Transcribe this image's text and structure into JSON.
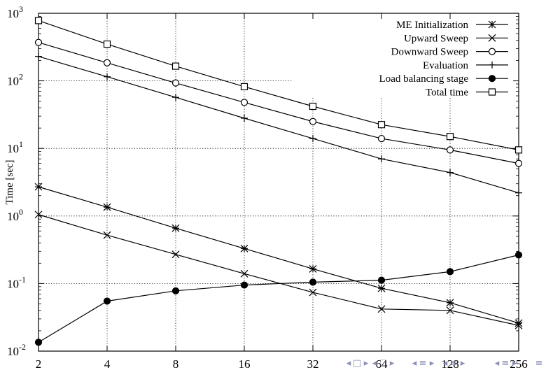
{
  "chart_data": {
    "type": "line",
    "title": "",
    "xlabel": "",
    "ylabel": "Time [sec]",
    "xscale": "log2",
    "yscale": "log10",
    "xlim": [
      2,
      256
    ],
    "ylim": [
      0.01,
      1000
    ],
    "grid": true,
    "legend_position": "top-right",
    "x": [
      2,
      4,
      8,
      16,
      32,
      64,
      128,
      256
    ],
    "x_tick_labels": [
      "2",
      "4",
      "8",
      "16",
      "32",
      "64",
      "128",
      "256"
    ],
    "y_ticks": [
      {
        "base": "10",
        "exp": "-2",
        "value": 0.01
      },
      {
        "base": "10",
        "exp": "-1",
        "value": 0.1
      },
      {
        "base": "10",
        "exp": "0",
        "value": 1
      },
      {
        "base": "10",
        "exp": "1",
        "value": 10
      },
      {
        "base": "10",
        "exp": "2",
        "value": 100
      },
      {
        "base": "10",
        "exp": "3",
        "value": 1000
      }
    ],
    "series": [
      {
        "name": "ME Initialization",
        "marker": "asterisk",
        "values": [
          2.7,
          1.35,
          0.66,
          0.33,
          0.165,
          0.085,
          0.052,
          0.026
        ]
      },
      {
        "name": "Upward Sweep",
        "marker": "cross",
        "values": [
          1.05,
          0.52,
          0.27,
          0.14,
          0.074,
          0.042,
          0.04,
          0.024
        ]
      },
      {
        "name": "Downward Sweep",
        "marker": "circle",
        "values": [
          370,
          185,
          93,
          48,
          25,
          14,
          9.5,
          6
        ]
      },
      {
        "name": "Evaluation",
        "marker": "plus",
        "values": [
          230,
          115,
          57,
          28,
          14,
          7,
          4.4,
          2.2
        ]
      },
      {
        "name": "Load balancing stage",
        "marker": "filled-circle",
        "values": [
          0.0135,
          0.055,
          0.078,
          0.095,
          0.105,
          0.112,
          0.15,
          0.265
        ]
      },
      {
        "name": "Total time",
        "marker": "square",
        "values": [
          780,
          350,
          165,
          82,
          42,
          22.5,
          15,
          9.5
        ]
      }
    ]
  },
  "nav_icons": [
    "triangle-left-icon",
    "frame-icon",
    "triangle-right-icon",
    "triangle-left-icon",
    "section-icon",
    "triangle-right-icon",
    "triangle-left-icon",
    "equiv-icon"
  ]
}
